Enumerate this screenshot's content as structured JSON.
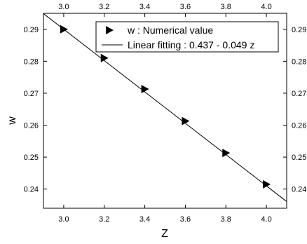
{
  "chart_data": {
    "type": "scatter",
    "xlabel": "Z",
    "ylabel": "w",
    "xlim": [
      2.9,
      4.1
    ],
    "ylim": [
      0.234,
      0.295
    ],
    "x_ticks": [
      3.0,
      3.2,
      3.4,
      3.6,
      3.8,
      4.0
    ],
    "x_tick_labels": [
      "3.0",
      "3.2",
      "3.4",
      "3.6",
      "3.8",
      "4.0"
    ],
    "y_ticks": [
      0.24,
      0.25,
      0.26,
      0.27,
      0.28,
      0.29
    ],
    "y_tick_labels": [
      "0.24",
      "0.25",
      "0.26",
      "0.27",
      "0.28",
      "0.29"
    ],
    "mirrored_axes": true,
    "grid": false,
    "legend_position": "top-right",
    "series": [
      {
        "name": "w : Numerical value",
        "kind": "points",
        "marker": "right-triangle",
        "color": "#000000",
        "x": [
          3.0,
          3.2,
          3.4,
          3.6,
          3.8,
          4.0
        ],
        "y": [
          0.29,
          0.281,
          0.2713,
          0.2613,
          0.2513,
          0.2415
        ]
      },
      {
        "name": "Linear fitting : 0.437 - 0.049 z",
        "kind": "line",
        "color": "#000000",
        "intercept": 0.437,
        "slope": -0.049
      }
    ]
  }
}
